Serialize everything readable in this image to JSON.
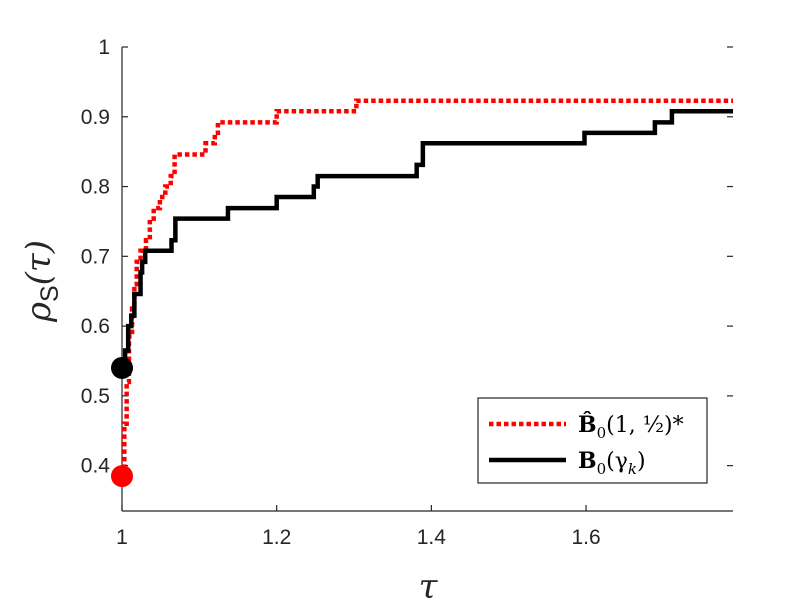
{
  "chart_data": {
    "type": "line",
    "xlabel": "τ",
    "ylabel": "ρ",
    "ylabel_sub": "S",
    "ylabel_tail": "(τ)",
    "xlim": [
      1,
      1.79
    ],
    "ylim": [
      0.335,
      1
    ],
    "xticks": [
      1,
      1.2,
      1.4,
      1.6
    ],
    "xtick_labels": [
      "1",
      "1.2",
      "1.4",
      "1.6"
    ],
    "yticks": [
      0.4,
      0.5,
      0.6,
      0.7,
      0.8,
      0.9,
      1
    ],
    "ytick_labels": [
      "0.4",
      "0.5",
      "0.6",
      "0.7",
      "0.8",
      "0.9",
      "1"
    ],
    "grid": false,
    "legend_position": "bottom-right",
    "series": [
      {
        "name": "B̂₀(1, ½)*",
        "legend_main": "B̂",
        "legend_sub": "0",
        "legend_args": "(1, ½)*",
        "color": "#ff0000",
        "style": "dotted",
        "start_marker": [
          1.0,
          0.385
        ],
        "points": [
          [
            1.0,
            0.385
          ],
          [
            1.003,
            0.4
          ],
          [
            1.003,
            0.46
          ],
          [
            1.006,
            0.46
          ],
          [
            1.006,
            0.52
          ],
          [
            1.009,
            0.52
          ],
          [
            1.009,
            0.585
          ],
          [
            1.013,
            0.585
          ],
          [
            1.013,
            0.625
          ],
          [
            1.016,
            0.625
          ],
          [
            1.016,
            0.66
          ],
          [
            1.019,
            0.66
          ],
          [
            1.019,
            0.692
          ],
          [
            1.024,
            0.692
          ],
          [
            1.024,
            0.708
          ],
          [
            1.031,
            0.708
          ],
          [
            1.031,
            0.723
          ],
          [
            1.036,
            0.723
          ],
          [
            1.036,
            0.754
          ],
          [
            1.041,
            0.754
          ],
          [
            1.041,
            0.769
          ],
          [
            1.049,
            0.769
          ],
          [
            1.049,
            0.785
          ],
          [
            1.056,
            0.785
          ],
          [
            1.056,
            0.8
          ],
          [
            1.063,
            0.8
          ],
          [
            1.063,
            0.815
          ],
          [
            1.068,
            0.815
          ],
          [
            1.068,
            0.846
          ],
          [
            1.108,
            0.846
          ],
          [
            1.108,
            0.862
          ],
          [
            1.12,
            0.862
          ],
          [
            1.12,
            0.877
          ],
          [
            1.124,
            0.877
          ],
          [
            1.124,
            0.892
          ],
          [
            1.2,
            0.892
          ],
          [
            1.2,
            0.908
          ],
          [
            1.303,
            0.908
          ],
          [
            1.303,
            0.923
          ],
          [
            1.79,
            0.923
          ]
        ]
      },
      {
        "name": "B₀(γₖ)",
        "legend_main": "B",
        "legend_sub": "0",
        "legend_args": "(γ",
        "legend_args_sub": "k",
        "legend_args_tail": ")",
        "color": "#000000",
        "style": "solid",
        "start_marker": [
          1.0,
          0.54
        ],
        "points": [
          [
            1.0,
            0.54
          ],
          [
            1.004,
            0.54
          ],
          [
            1.004,
            0.565
          ],
          [
            1.008,
            0.565
          ],
          [
            1.008,
            0.6
          ],
          [
            1.012,
            0.6
          ],
          [
            1.012,
            0.615
          ],
          [
            1.016,
            0.615
          ],
          [
            1.016,
            0.646
          ],
          [
            1.024,
            0.646
          ],
          [
            1.024,
            0.677
          ],
          [
            1.026,
            0.677
          ],
          [
            1.026,
            0.692
          ],
          [
            1.03,
            0.692
          ],
          [
            1.03,
            0.708
          ],
          [
            1.064,
            0.708
          ],
          [
            1.064,
            0.723
          ],
          [
            1.069,
            0.723
          ],
          [
            1.069,
            0.754
          ],
          [
            1.137,
            0.754
          ],
          [
            1.137,
            0.769
          ],
          [
            1.2,
            0.769
          ],
          [
            1.2,
            0.785
          ],
          [
            1.248,
            0.785
          ],
          [
            1.248,
            0.8
          ],
          [
            1.253,
            0.8
          ],
          [
            1.253,
            0.815
          ],
          [
            1.381,
            0.815
          ],
          [
            1.381,
            0.831
          ],
          [
            1.389,
            0.831
          ],
          [
            1.389,
            0.862
          ],
          [
            1.598,
            0.862
          ],
          [
            1.598,
            0.877
          ],
          [
            1.689,
            0.877
          ],
          [
            1.689,
            0.892
          ],
          [
            1.711,
            0.892
          ],
          [
            1.711,
            0.908
          ],
          [
            1.79,
            0.908
          ]
        ]
      }
    ]
  }
}
